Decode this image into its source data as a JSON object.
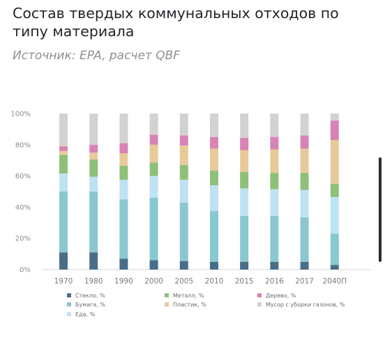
{
  "title": "Состав твердых коммунальных отходов по типу материала",
  "subtitle": "Источник: EPA, расчет QBF",
  "colors": {
    "Стекло, %": "#4a6d8a",
    "Бумага, %": "#89c8cf",
    "Еда, %": "#bde3f3",
    "Металл, %": "#8fc07a",
    "Пластик, %": "#e8ca9a",
    "Дерево, %": "#d784b5",
    "Мусор с уборки газонов, %": "#d2d2d2"
  },
  "chart_data": {
    "type": "bar",
    "stacked": true,
    "categories": [
      "1970",
      "1980",
      "1990",
      "2000",
      "2005",
      "2010",
      "2015",
      "2016",
      "2017",
      "2040П"
    ],
    "y_ticks": [
      "0%",
      "20%",
      "40%",
      "60%",
      "80%",
      "100%"
    ],
    "ylim": [
      0,
      100
    ],
    "legend_position": "bottom",
    "series": [
      {
        "name": "Стекло, %",
        "values": [
          11,
          11,
          7,
          6,
          5.5,
          5,
          5,
          5,
          5,
          3
        ]
      },
      {
        "name": "Бумага, %",
        "values": [
          39,
          39,
          38,
          40,
          37.5,
          32.5,
          29.5,
          29.5,
          28.5,
          20
        ]
      },
      {
        "name": "Еда, %",
        "values": [
          11.5,
          9.5,
          12.5,
          14,
          14.5,
          16.5,
          17.5,
          17,
          17.5,
          23.5
        ]
      },
      {
        "name": "Металл, %",
        "values": [
          12,
          11,
          9,
          8.5,
          9.5,
          9.5,
          10.5,
          10.5,
          11,
          8.5
        ]
      },
      {
        "name": "Пластик, %",
        "values": [
          2.5,
          4.5,
          8,
          11.5,
          12.5,
          14,
          14,
          15,
          15.5,
          28
        ]
      },
      {
        "name": "Дерево, %",
        "values": [
          3,
          5,
          6.5,
          6.5,
          6.5,
          7.5,
          8,
          8,
          8.5,
          12.5
        ]
      },
      {
        "name": "Мусор с уборки газонов, %",
        "values": [
          21,
          20,
          19,
          13.5,
          14,
          15,
          15.5,
          15,
          14,
          4.5
        ]
      }
    ]
  }
}
